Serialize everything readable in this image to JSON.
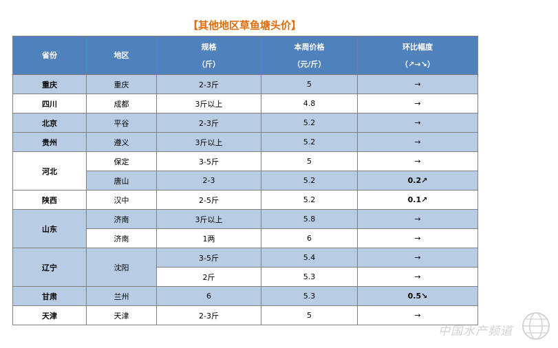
{
  "title": "【其他地区草鱼塘头价】",
  "headers": {
    "province": "省份",
    "area": "地区",
    "spec_line1": "规格",
    "spec_line2": "（斤）",
    "price_line1": "本周价格",
    "price_line2": "（元/斤）",
    "change_line1": "环比幅度",
    "change_line2": "（↗→↘）"
  },
  "provinces": [
    "重庆",
    "四川",
    "北京",
    "贵州",
    "河北",
    "陕西",
    "山东",
    "辽宁",
    "甘肃",
    "天津"
  ],
  "rows": [
    {
      "area": "重庆",
      "spec": "2-3斤",
      "price": "5",
      "change": "→"
    },
    {
      "area": "成都",
      "spec": "3斤以上",
      "price": "4.8",
      "change": "→"
    },
    {
      "area": "平谷",
      "spec": "2-3斤",
      "price": "5.2",
      "change": "→"
    },
    {
      "area": "遵义",
      "spec": "3斤以上",
      "price": "5.2",
      "change": "→"
    },
    {
      "area": "保定",
      "spec": "3-5斤",
      "price": "5",
      "change": "→"
    },
    {
      "area": "唐山",
      "spec": "2-3",
      "price": "5.2",
      "change": "0.2↗"
    },
    {
      "area": "汉中",
      "spec": "2-5斤",
      "price": "5.2",
      "change": "0.1↗"
    },
    {
      "area": "济南",
      "spec": "3斤以上",
      "price": "5.8",
      "change": "→"
    },
    {
      "area": "济南",
      "spec": "1两",
      "price": "6",
      "change": "→"
    },
    {
      "area": "沈阳",
      "spec": "3-5斤",
      "price": "5.4",
      "change": "→"
    },
    {
      "spec": "2斤",
      "price": "5.3",
      "change": "→"
    },
    {
      "area": "兰州",
      "spec": "6",
      "price": "5.3",
      "change": "0.5↘"
    },
    {
      "area": "天津",
      "spec": "2-3斤",
      "price": "5",
      "change": "→"
    }
  ],
  "watermark": "中国水产频道",
  "colors": {
    "header_bg": "#4f81bd",
    "row_shade": "#b8cce4",
    "title": "#e36c09",
    "up": "#ff0000",
    "down": "#00a651"
  }
}
